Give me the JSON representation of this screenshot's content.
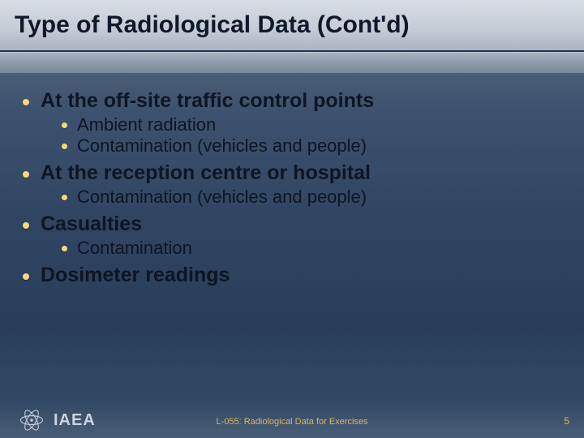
{
  "colors": {
    "bullet": "#f8d97a",
    "text": "#0e1524",
    "footer_accent": "#d6b95e",
    "footer_text": "#c9d3e0"
  },
  "title": "Type of Radiological Data (Cont'd)",
  "bullets": [
    {
      "text": "At the off-site traffic control points",
      "children": [
        "Ambient radiation",
        "Contamination (vehicles and people)"
      ]
    },
    {
      "text": "At the reception centre or hospital",
      "children": [
        "Contamination (vehicles and people)"
      ]
    },
    {
      "text": "Casualties",
      "children": [
        "Contamination"
      ]
    },
    {
      "text": "Dosimeter readings",
      "children": []
    }
  ],
  "footer": {
    "org": "IAEA",
    "label": "L-055: Radiological Data for Exercises",
    "page": "5"
  }
}
